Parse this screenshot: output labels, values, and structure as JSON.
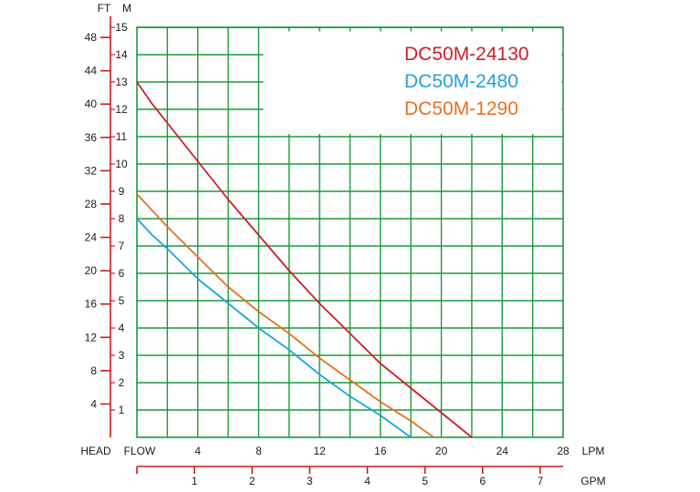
{
  "chart_data": {
    "type": "line",
    "xlabel": "LPM",
    "x_prefix_label": "FLOW",
    "ylabel": "M",
    "y2label": "FT",
    "y2_prefix_label": "HEAD",
    "x2label": "GPM",
    "xlim": [
      0,
      28
    ],
    "ylim": [
      0,
      15
    ],
    "x_ticks": [
      "4",
      "8",
      "12",
      "16",
      "20",
      "24",
      "28"
    ],
    "x_tick_values": [
      4,
      8,
      12,
      16,
      20,
      24,
      28
    ],
    "y_ticks": [
      "1",
      "2",
      "3",
      "4",
      "5",
      "6",
      "7",
      "8",
      "9",
      "10",
      "11",
      "12",
      "13",
      "14",
      "15"
    ],
    "y_tick_values": [
      1,
      2,
      3,
      4,
      5,
      6,
      7,
      8,
      9,
      10,
      11,
      12,
      13,
      14,
      15
    ],
    "ft_ticks": [
      "4",
      "8",
      "12",
      "16",
      "20",
      "24",
      "28",
      "32",
      "36",
      "40",
      "44",
      "48"
    ],
    "ft_tick_values": [
      4,
      8,
      12,
      16,
      20,
      24,
      28,
      32,
      36,
      40,
      44,
      48
    ],
    "gpm_ticks": [
      "1",
      "2",
      "3",
      "4",
      "5",
      "6",
      "7"
    ],
    "gpm_tick_values": [
      1,
      2,
      3,
      4,
      5,
      6,
      7
    ],
    "grid": true,
    "legend_position": "top-right",
    "colors": {
      "grid": "#1a9a3a",
      "axis_red": "#cc1a1a",
      "text": "#1a1a1a"
    },
    "series": [
      {
        "name": "DC50M-24130",
        "color": "#cc1f2a",
        "x": [
          0,
          1,
          2,
          3,
          4,
          6,
          8,
          10,
          12,
          14,
          16,
          18,
          20,
          22
        ],
        "y": [
          13,
          12.2,
          11.5,
          10.8,
          10.1,
          8.7,
          7.4,
          6.1,
          4.9,
          3.8,
          2.7,
          1.8,
          0.9,
          0
        ]
      },
      {
        "name": "DC50M-2480",
        "color": "#1fa3d9",
        "x": [
          0,
          1,
          2,
          4,
          6,
          8,
          10,
          12,
          14,
          16,
          17,
          18
        ],
        "y": [
          8,
          7.4,
          6.9,
          5.8,
          4.9,
          4.0,
          3.2,
          2.3,
          1.5,
          0.8,
          0.4,
          0
        ]
      },
      {
        "name": "DC50M-1290",
        "color": "#e87020",
        "x": [
          0,
          1,
          2,
          4,
          6,
          8,
          10,
          12,
          14,
          16,
          18,
          19.5
        ],
        "y": [
          8.9,
          8.3,
          7.7,
          6.6,
          5.5,
          4.6,
          3.8,
          2.9,
          2.1,
          1.3,
          0.6,
          0
        ]
      }
    ]
  }
}
